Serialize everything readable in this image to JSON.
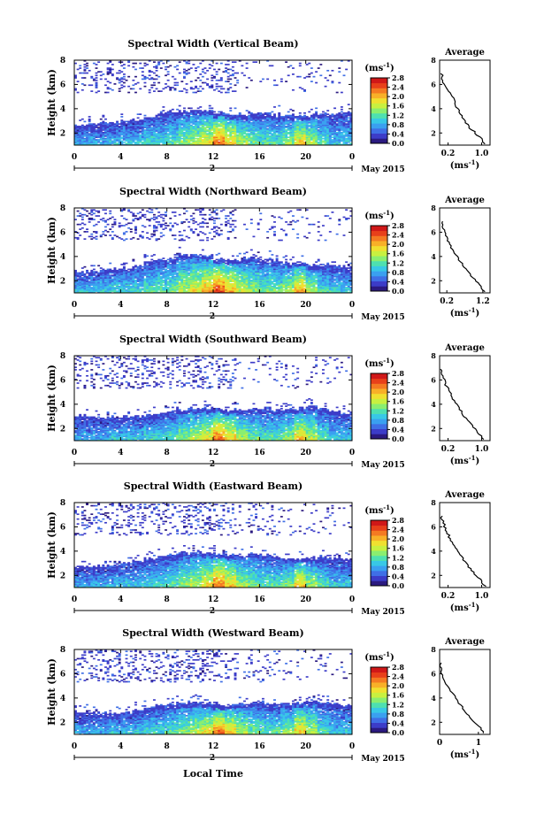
{
  "figure": {
    "colorbar_unit": "(ms",
    "colorbar_unit_sup": "-1",
    "colorbar_unit_close": ")",
    "date_day": "2",
    "date_month": "May 2015",
    "xlabel": "Local Time",
    "avg_title": "Average",
    "avg_xlabel": "(ms",
    "avg_xlabel_sup": "-1",
    "avg_xlabel_close": ")",
    "colormap": [
      "#2b1a80",
      "#3c3cc8",
      "#3f6fe6",
      "#3aa0f0",
      "#38c8e6",
      "#4ee0b0",
      "#8aee70",
      "#c8f040",
      "#f0e030",
      "#f8b028",
      "#f47a22",
      "#e8401a",
      "#d01818"
    ],
    "background": "#ffffff"
  },
  "chart_data": [
    {
      "type": "heatmap",
      "title": "Spectral Width (Vertical Beam)",
      "ylabel": "Height (km)",
      "xlim": [
        0,
        24
      ],
      "ylim": [
        1,
        8
      ],
      "x_ticks": [
        "0",
        "4",
        "8",
        "12",
        "16",
        "20",
        "0"
      ],
      "y_ticks": [
        "2",
        "4",
        "6",
        "8"
      ],
      "colorbar": {
        "range": [
          0.0,
          2.8
        ],
        "ticks": [
          "0.0",
          "0.4",
          "0.8",
          "1.2",
          "1.6",
          "2.0",
          "2.4",
          "2.8"
        ]
      },
      "cloud_top_km": [
        2.6,
        2.7,
        2.7,
        2.8,
        2.9,
        3.1,
        3.3,
        3.6,
        3.7,
        3.8,
        3.8,
        3.8,
        3.6,
        3.5,
        3.5,
        3.6,
        3.6,
        3.5,
        3.4,
        3.4,
        3.5,
        3.6,
        3.6,
        3.7
      ],
      "mean_width": [
        0.7,
        0.7,
        0.7,
        0.8,
        0.8,
        0.8,
        0.9,
        0.9,
        1.0,
        1.2,
        1.3,
        1.5,
        1.9,
        1.6,
        1.3,
        1.1,
        1.0,
        1.0,
        1.2,
        1.6,
        1.3,
        1.0,
        0.8,
        0.8
      ],
      "average_profile": {
        "x_ticks": [
          "0.2",
          "1.0"
        ],
        "xlim": [
          0,
          1.2
        ],
        "ylim": [
          1,
          8
        ],
        "y_ticks": [
          "2",
          "4",
          "6",
          "8"
        ],
        "height": [
          1.1,
          1.5,
          2.0,
          2.5,
          3.0,
          3.5,
          4.0,
          4.5,
          5.0,
          5.5,
          6.0,
          6.5,
          6.9
        ],
        "width": [
          1.08,
          1.0,
          0.85,
          0.7,
          0.6,
          0.5,
          0.42,
          0.35,
          0.3,
          0.22,
          0.12,
          0.06,
          0.05
        ]
      }
    },
    {
      "type": "heatmap",
      "title": "Spectral Width (Northward Beam)",
      "ylabel": "Height (km)",
      "xlim": [
        0,
        24
      ],
      "ylim": [
        1,
        8
      ],
      "x_ticks": [
        "0",
        "4",
        "8",
        "12",
        "16",
        "20",
        "0"
      ],
      "y_ticks": [
        "2",
        "4",
        "6",
        "8"
      ],
      "colorbar": {
        "range": [
          0.0,
          2.8
        ],
        "ticks": [
          "0.0",
          "0.4",
          "0.8",
          "1.2",
          "1.6",
          "2.0",
          "2.4",
          "2.8"
        ]
      },
      "cloud_top_km": [
        2.7,
        2.8,
        2.9,
        2.9,
        3.0,
        3.2,
        3.5,
        3.7,
        3.9,
        4.1,
        4.1,
        4.0,
        3.8,
        3.7,
        3.7,
        3.8,
        3.7,
        3.6,
        3.5,
        3.4,
        3.3,
        3.3,
        3.2,
        3.1
      ],
      "mean_width": [
        0.8,
        0.8,
        0.8,
        0.9,
        0.9,
        0.9,
        1.0,
        1.0,
        1.1,
        1.3,
        1.5,
        1.7,
        2.0,
        1.7,
        1.4,
        1.2,
        1.1,
        1.1,
        1.3,
        1.7,
        1.3,
        1.0,
        0.9,
        0.8
      ],
      "average_profile": {
        "x_ticks": [
          "0.2",
          "1.2"
        ],
        "xlim": [
          0,
          1.4
        ],
        "ylim": [
          1,
          8
        ],
        "y_ticks": [
          "2",
          "4",
          "6",
          "8"
        ],
        "height": [
          1.1,
          1.5,
          2.0,
          2.5,
          3.0,
          3.5,
          4.0,
          4.5,
          5.0,
          5.5,
          6.0,
          6.5,
          6.9
        ],
        "width": [
          1.25,
          1.15,
          1.0,
          0.85,
          0.72,
          0.6,
          0.48,
          0.36,
          0.28,
          0.2,
          0.14,
          0.08,
          0.06
        ]
      }
    },
    {
      "type": "heatmap",
      "title": "Spectral Width (Southward Beam)",
      "ylabel": "Height (km)",
      "xlim": [
        0,
        24
      ],
      "ylim": [
        1,
        8
      ],
      "x_ticks": [
        "0",
        "4",
        "8",
        "12",
        "16",
        "20",
        "0"
      ],
      "y_ticks": [
        "2",
        "4",
        "6",
        "8"
      ],
      "colorbar": {
        "range": [
          0.0,
          2.8
        ],
        "ticks": [
          "0.0",
          "0.4",
          "0.8",
          "1.2",
          "1.6",
          "2.0",
          "2.4",
          "2.8"
        ]
      },
      "cloud_top_km": [
        3.0,
        3.0,
        2.9,
        2.9,
        2.9,
        3.0,
        3.1,
        3.2,
        3.4,
        3.5,
        3.6,
        3.6,
        3.6,
        3.5,
        3.5,
        3.6,
        3.6,
        3.5,
        3.5,
        3.6,
        3.7,
        3.6,
        3.4,
        3.3
      ],
      "mean_width": [
        0.7,
        0.7,
        0.7,
        0.8,
        0.8,
        0.8,
        0.9,
        0.9,
        1.0,
        1.2,
        1.3,
        1.5,
        1.9,
        1.6,
        1.3,
        1.1,
        1.0,
        1.0,
        1.2,
        1.6,
        1.3,
        1.0,
        0.8,
        0.8
      ],
      "average_profile": {
        "x_ticks": [
          "0.2",
          "1.0"
        ],
        "xlim": [
          0,
          1.2
        ],
        "ylim": [
          1,
          8
        ],
        "y_ticks": [
          "2",
          "4",
          "6",
          "8"
        ],
        "height": [
          1.1,
          1.5,
          2.0,
          2.5,
          3.0,
          3.5,
          4.0,
          4.5,
          5.0,
          5.5,
          6.0,
          6.5,
          6.9
        ],
        "width": [
          1.05,
          0.95,
          0.82,
          0.7,
          0.58,
          0.5,
          0.42,
          0.3,
          0.24,
          0.16,
          0.1,
          0.06,
          0.05
        ]
      }
    },
    {
      "type": "heatmap",
      "title": "Spectral Width (Eastward Beam)",
      "ylabel": "Height (km)",
      "xlim": [
        0,
        24
      ],
      "ylim": [
        1,
        8
      ],
      "x_ticks": [
        "0",
        "4",
        "8",
        "12",
        "16",
        "20",
        "0"
      ],
      "y_ticks": [
        "2",
        "4",
        "6",
        "8"
      ],
      "colorbar": {
        "range": [
          0.0,
          2.8
        ],
        "ticks": [
          "0.0",
          "0.4",
          "0.8",
          "1.2",
          "1.6",
          "2.0",
          "2.4",
          "2.8"
        ]
      },
      "cloud_top_km": [
        2.7,
        2.7,
        2.8,
        2.8,
        2.9,
        3.1,
        3.3,
        3.5,
        3.7,
        3.8,
        3.9,
        3.8,
        3.7,
        3.6,
        3.6,
        3.7,
        3.6,
        3.5,
        3.4,
        3.4,
        3.4,
        3.5,
        3.4,
        3.3
      ],
      "mean_width": [
        0.7,
        0.7,
        0.7,
        0.8,
        0.8,
        0.8,
        0.9,
        0.9,
        1.0,
        1.2,
        1.3,
        1.5,
        1.9,
        1.6,
        1.3,
        1.1,
        1.0,
        1.0,
        1.2,
        1.6,
        1.3,
        1.0,
        0.8,
        0.8
      ],
      "average_profile": {
        "x_ticks": [
          "0.2",
          "1.0"
        ],
        "xlim": [
          0,
          1.2
        ],
        "ylim": [
          1,
          8
        ],
        "y_ticks": [
          "2",
          "4",
          "6",
          "8"
        ],
        "height": [
          1.1,
          1.5,
          2.0,
          2.5,
          3.0,
          3.5,
          4.0,
          4.5,
          5.0,
          5.5,
          6.0,
          6.5,
          6.9
        ],
        "width": [
          1.1,
          1.0,
          0.88,
          0.74,
          0.62,
          0.52,
          0.44,
          0.34,
          0.26,
          0.18,
          0.12,
          0.07,
          0.05
        ]
      }
    },
    {
      "type": "heatmap",
      "title": "Spectral Width (Westward Beam)",
      "ylabel": "Height (km)",
      "xlim": [
        0,
        24
      ],
      "ylim": [
        1,
        8
      ],
      "x_ticks": [
        "0",
        "4",
        "8",
        "12",
        "16",
        "20",
        "0"
      ],
      "y_ticks": [
        "2",
        "4",
        "6",
        "8"
      ],
      "colorbar": {
        "range": [
          0.0,
          2.8
        ],
        "ticks": [
          "0.0",
          "0.4",
          "0.8",
          "1.2",
          "1.6",
          "2.0",
          "2.4",
          "2.8"
        ]
      },
      "cloud_top_km": [
        2.8,
        2.8,
        2.7,
        2.7,
        2.8,
        3.0,
        3.2,
        3.4,
        3.5,
        3.6,
        3.6,
        3.5,
        3.4,
        3.4,
        3.5,
        3.6,
        3.6,
        3.5,
        3.5,
        3.6,
        3.7,
        3.6,
        3.5,
        3.4
      ],
      "mean_width": [
        0.7,
        0.7,
        0.7,
        0.8,
        0.8,
        0.8,
        0.9,
        0.9,
        1.0,
        1.2,
        1.3,
        1.5,
        1.9,
        1.6,
        1.3,
        1.1,
        1.0,
        1.0,
        1.2,
        1.6,
        1.3,
        1.0,
        0.8,
        0.8
      ],
      "average_profile": {
        "x_ticks": [
          "0",
          "1"
        ],
        "xlim": [
          0,
          1.3
        ],
        "ylim": [
          1,
          8
        ],
        "y_ticks": [
          "2",
          "4",
          "6",
          "8"
        ],
        "height": [
          1.1,
          1.5,
          2.0,
          2.5,
          3.0,
          3.5,
          4.0,
          4.5,
          5.0,
          5.5,
          6.0,
          6.5,
          6.9
        ],
        "width": [
          1.15,
          1.05,
          0.9,
          0.76,
          0.64,
          0.52,
          0.42,
          0.3,
          0.2,
          0.12,
          0.06,
          0.03,
          0.02
        ]
      }
    }
  ]
}
